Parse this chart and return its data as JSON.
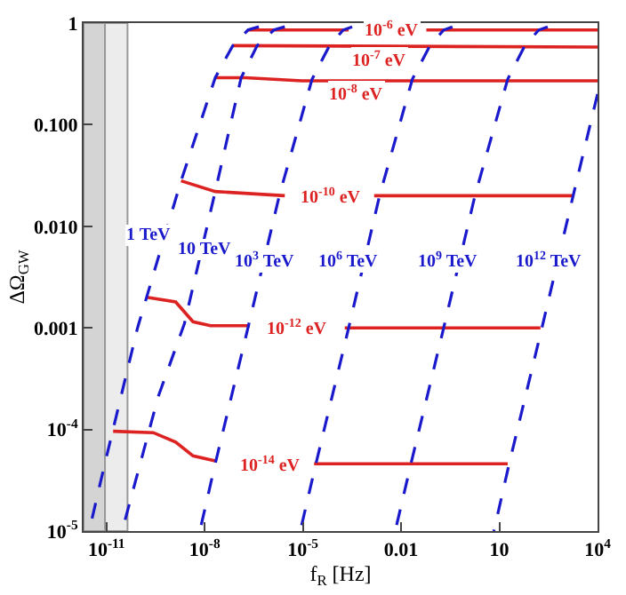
{
  "chart_data": {
    "type": "line",
    "xlabel": "f$_{R}$ [Hz]",
    "ylabel": "ΔΩ$_{GW}$",
    "log": "xy",
    "marker": "none",
    "xlim": [
      2e-12,
      10000
    ],
    "ylim": [
      1e-05,
      1
    ],
    "xticks": [
      {
        "value": 1e-11,
        "label": "10$^{-11}$"
      },
      {
        "value": 1e-08,
        "label": "10$^{-8}$"
      },
      {
        "value": 1e-05,
        "label": "10$^{-5}$"
      },
      0.01,
      10,
      {
        "value": 10000,
        "label": "10$^{4}$"
      }
    ],
    "yticks": [
      {
        "value": 1e-05,
        "label": "10$^{-5}$"
      },
      {
        "value": 0.0001,
        "label": "10$^{-4}$"
      },
      0.001,
      {
        "value": 0.01,
        "label": "0.010"
      },
      {
        "value": 0.1,
        "label": "0.100"
      },
      1
    ],
    "bands": [
      {
        "axis": "x",
        "from": 2e-12,
        "to": 9e-12,
        "color": "#d4d4d4"
      },
      {
        "axis": "x",
        "from": 9e-12,
        "to": 4.4e-11,
        "color": "#ececec"
      }
    ],
    "series": [
      {
        "color": "#dd2222",
        "line_style": "solid",
        "x": [
          2.1e-07,
          0.00025,
          null,
          0.059,
          10000
        ],
        "values": [
          0.855,
          0.855,
          null,
          0.855,
          0.855
        ]
      },
      {
        "color": "#dd2222",
        "line_style": "solid",
        "x": [
          7.2e-08,
          10000
        ],
        "values": [
          0.6,
          0.58
        ]
      },
      {
        "color": "#dd2222",
        "line_style": "solid",
        "x": [
          2.1e-08,
          1.7e-07,
          9.3e-06,
          10000
        ],
        "values": [
          0.29,
          0.29,
          0.27,
          0.27
        ]
      },
      {
        "color": "#dd2222",
        "line_style": "solid",
        "x": [
          1.9e-09,
          2.1e-08,
          2.8e-06,
          null,
          0.0015,
          1800
        ],
        "values": [
          0.028,
          0.022,
          0.02,
          null,
          0.02,
          0.02
        ]
      },
      {
        "color": "#dd2222",
        "line_style": "solid",
        "x": [
          1.7e-10,
          1.3e-09,
          4.4e-09,
          1.5e-08,
          2.4e-07,
          null,
          0.00019,
          180
        ],
        "values": [
          0.002,
          0.0018,
          0.00115,
          0.00105,
          0.00105,
          null,
          0.001,
          0.001
        ]
      },
      {
        "color": "#dd2222",
        "line_style": "solid",
        "x": [
          1.6e-11,
          2.7e-10,
          1.3e-09,
          4.4e-09,
          2.1e-08,
          null,
          2.2e-05,
          18
        ],
        "values": [
          9.6e-05,
          9.3e-05,
          7.5e-05,
          5.5e-05,
          4.9e-05,
          null,
          4.6e-05,
          4.6e-05
        ]
      },
      {
        "color": "#1a1acc",
        "line_style": "dashed",
        "x": [
          2.95e-12,
          8.9e-12,
          8.9e-11,
          1.9e-09,
          2.1e-08,
          7.2e-08,
          2.1e-07,
          4.5e-07
        ],
        "values": [
          1e-05,
          4.6e-05,
          0.001,
          0.028,
          0.29,
          0.6,
          0.855,
          0.92
        ]
      },
      {
        "color": "#1a1acc",
        "line_style": "dashed",
        "x": [
          3e-11,
          3.8e-10,
          2.4e-09,
          2.1e-08,
          1.3e-07,
          4e-07,
          1.3e-06,
          2.8e-06
        ],
        "values": [
          1e-05,
          0.00021,
          0.0011,
          0.022,
          0.29,
          0.6,
          0.855,
          0.92
        ]
      },
      {
        "color": "#1a1acc",
        "line_style": "dashed",
        "x": [
          7.1e-09,
          2.1e-08,
          2.1e-07,
          1.9e-06,
          1.9e-05,
          6.5e-05,
          0.00017,
          0.00032
        ],
        "values": [
          1e-05,
          4.6e-05,
          0.001,
          0.02,
          0.28,
          0.6,
          0.855,
          0.92
        ]
      },
      {
        "color": "#1a1acc",
        "line_style": "dashed",
        "x": [
          8.3e-06,
          2.5e-05,
          0.00025,
          0.0022,
          0.022,
          0.076,
          0.2,
          0.37
        ],
        "values": [
          1e-05,
          4.6e-05,
          0.001,
          0.02,
          0.28,
          0.6,
          0.855,
          0.92
        ]
      },
      {
        "color": "#1a1acc",
        "line_style": "dashed",
        "x": [
          0.0066,
          0.02,
          0.2,
          1.8,
          18,
          60,
          160,
          300
        ],
        "values": [
          1e-05,
          4.6e-05,
          0.001,
          0.02,
          0.28,
          0.6,
          0.855,
          0.92
        ]
      },
      {
        "color": "#1a1acc",
        "line_style": "dashed",
        "x": [
          6.8,
          20,
          200,
          1800,
          10000
        ],
        "values": [
          1e-05,
          4.6e-05,
          0.001,
          0.02,
          0.2
        ]
      }
    ],
    "annotations": [
      {
        "text": "10$^{-6}$ eV",
        "x": 0.0052,
        "y": 0.855
      },
      {
        "text": "10$^{-7}$ eV",
        "x": 0.0022,
        "y": 0.44
      },
      {
        "text": "10$^{-8}$ eV",
        "x": 0.00046,
        "y": 0.2
      },
      {
        "text": "10$^{-10}$ eV",
        "x": 7.4e-05,
        "y": 0.02
      },
      {
        "text": "10$^{-12}$ eV",
        "x": 6.5e-06,
        "y": 0.001
      },
      {
        "text": "10$^{-14}$ eV",
        "x": 1.05e-06,
        "y": 4.6e-05
      },
      {
        "text": "1 TeV",
        "x": 2.1e-10,
        "y": 0.0083
      },
      {
        "text": "10 TeV",
        "x": 1e-08,
        "y": 0.0059
      },
      {
        "text": "10$^{3}$ TeV",
        "x": 7.2e-07,
        "y": 0.0047
      },
      {
        "text": "10$^{6}$ TeV",
        "x": 0.00025,
        "y": 0.0047
      },
      {
        "text": "10$^{9}$ TeV",
        "x": 0.29,
        "y": 0.0047
      },
      {
        "text": "10$^{12}$ TeV",
        "x": 330,
        "y": 0.0047
      }
    ]
  }
}
